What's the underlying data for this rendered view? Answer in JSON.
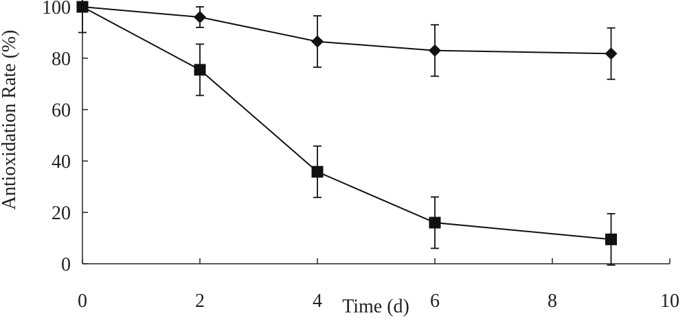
{
  "chart_data": {
    "type": "line",
    "title": "",
    "xlabel": "Time (d)",
    "ylabel": "Antioxidation Rate (%)",
    "xlim": [
      0,
      10
    ],
    "ylim": [
      0,
      100
    ],
    "x_ticks": [
      "0",
      "2",
      "4",
      "6",
      "8",
      "10"
    ],
    "y_ticks": [
      "0",
      "20",
      "40",
      "60",
      "80",
      "100"
    ],
    "grid": false,
    "legend": "none",
    "series": [
      {
        "marker": "diamond",
        "color": "#111111",
        "x": [
          0,
          2,
          4,
          6,
          9
        ],
        "y": [
          100,
          96,
          86.5,
          83,
          81.8
        ],
        "error": [
          0,
          4,
          10,
          10,
          10
        ]
      },
      {
        "marker": "square",
        "color": "#111111",
        "x": [
          0,
          2,
          4,
          6,
          9
        ],
        "y": [
          100,
          75.5,
          35.8,
          16,
          9.5
        ],
        "error": [
          10,
          10,
          10,
          10,
          10
        ]
      }
    ]
  }
}
